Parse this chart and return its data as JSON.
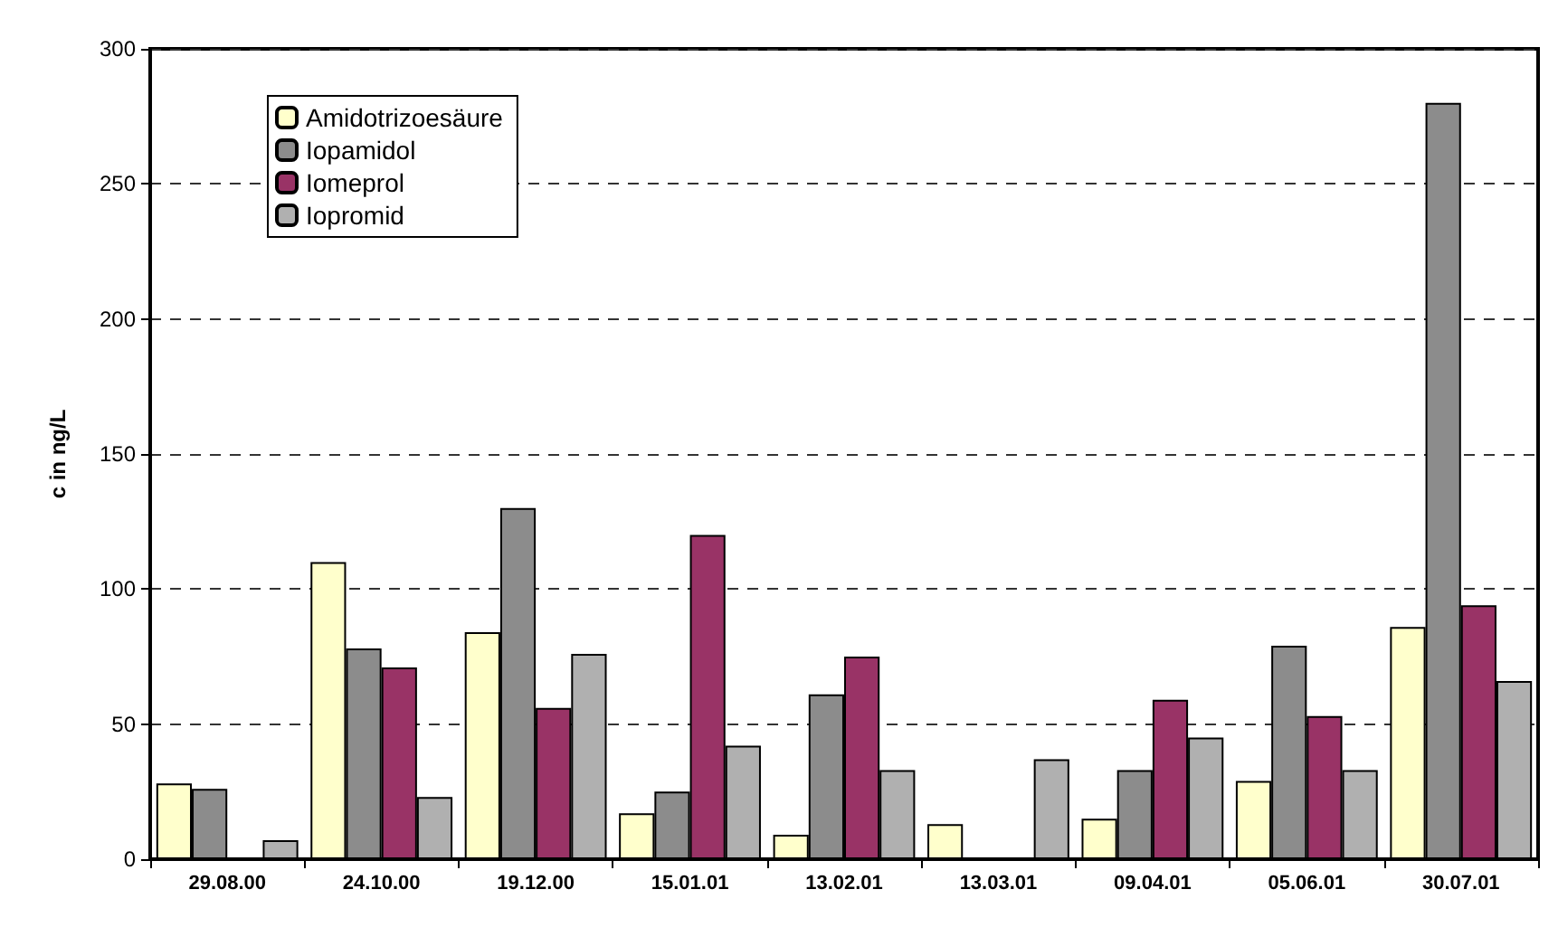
{
  "chart_data": {
    "type": "bar",
    "ylabel": "c in ng/L",
    "categories": [
      "29.08.00",
      "24.10.00",
      "19.12.00",
      "15.01.01",
      "13.02.01",
      "13.03.01",
      "09.04.01",
      "05.06.01",
      "30.07.01"
    ],
    "series": [
      {
        "name": "Amidotrizoesäure",
        "color": "#ffffcc",
        "values": [
          28,
          110,
          84,
          17,
          9,
          13,
          15,
          29,
          86
        ]
      },
      {
        "name": "Iopamidol",
        "color": "#8c8c8c",
        "values": [
          26,
          78,
          130,
          25,
          61,
          0,
          33,
          79,
          280
        ]
      },
      {
        "name": "Iomeprol",
        "color": "#993366",
        "values": [
          0,
          71,
          56,
          120,
          75,
          0,
          59,
          53,
          94
        ]
      },
      {
        "name": "Iopromid",
        "color": "#b0b0b0",
        "values": [
          7,
          23,
          76,
          42,
          33,
          37,
          45,
          33,
          66
        ]
      }
    ],
    "ylim": [
      0,
      300
    ],
    "yticks": [
      0,
      50,
      100,
      150,
      200,
      250,
      300
    ],
    "grid": "y",
    "legend": "top left"
  }
}
